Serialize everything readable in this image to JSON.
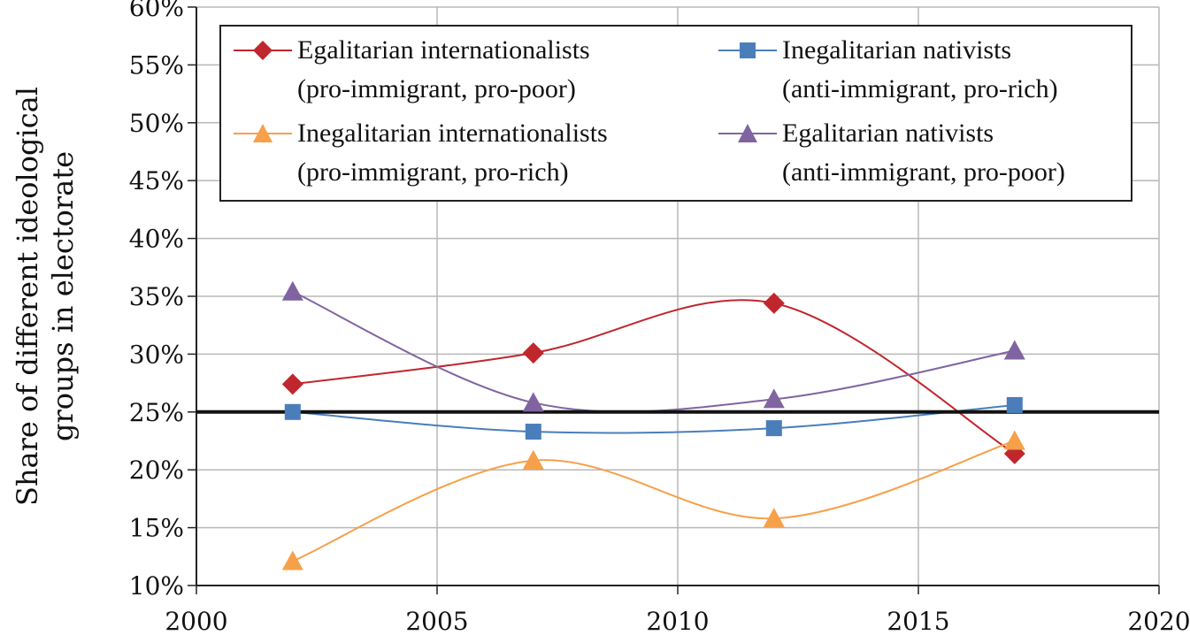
{
  "chart_data": {
    "type": "line",
    "title": "",
    "xlabel": "",
    "ylabel": "Share of different ideological groups in electorate",
    "ylabel_lines": [
      "Share of different ideological",
      "groups in electorate"
    ],
    "xlim": [
      2000,
      2020
    ],
    "ylim": [
      10,
      60
    ],
    "x_ticks": [
      2000,
      2005,
      2010,
      2015,
      2020
    ],
    "x_tick_labels": [
      "2000",
      "2005",
      "2010",
      "2015",
      "2020"
    ],
    "y_ticks": [
      10,
      15,
      20,
      25,
      30,
      35,
      40,
      45,
      50,
      55,
      60
    ],
    "y_tick_labels": [
      "10%",
      "15%",
      "20%",
      "25%",
      "30%",
      "35%",
      "40%",
      "45%",
      "50%",
      "55%",
      "60%"
    ],
    "grid": true,
    "reference_line": {
      "y": 25
    },
    "legend_position": "top",
    "series": [
      {
        "name": "Egalitarian internationalists (pro-immigrant, pro-poor)",
        "label_lines": [
          "Egalitarian internationalists",
          "(pro-immigrant, pro-poor)"
        ],
        "color": "#c0272d",
        "marker": "diamond",
        "x": [
          2002,
          2007,
          2012,
          2017
        ],
        "y": [
          27.4,
          30.1,
          34.4,
          21.4
        ]
      },
      {
        "name": "Inegalitarian nativists (anti-immigrant, pro-rich)",
        "label_lines": [
          "Inegalitarian nativists",
          "(anti-immigrant, pro-rich)"
        ],
        "color": "#4a7ebb",
        "marker": "square",
        "x": [
          2002,
          2007,
          2012,
          2017
        ],
        "y": [
          25.0,
          23.3,
          23.6,
          25.6
        ]
      },
      {
        "name": "Inegalitarian internationalists (pro-immigrant, pro-rich)",
        "label_lines": [
          "Inegalitarian internationalists",
          "(pro-immigrant, pro-rich)"
        ],
        "color": "#f7a04a",
        "marker": "triangle",
        "x": [
          2002,
          2007,
          2012,
          2017
        ],
        "y": [
          12.1,
          20.8,
          15.8,
          22.5
        ]
      },
      {
        "name": "Egalitarian nativists (anti-immigrant, pro-poor)",
        "label_lines": [
          "Egalitarian nativists",
          "(anti-immigrant, pro-poor)"
        ],
        "color": "#8064a2",
        "marker": "triangle",
        "x": [
          2002,
          2007,
          2012,
          2017
        ],
        "y": [
          35.4,
          25.8,
          26.1,
          30.3
        ]
      }
    ]
  }
}
